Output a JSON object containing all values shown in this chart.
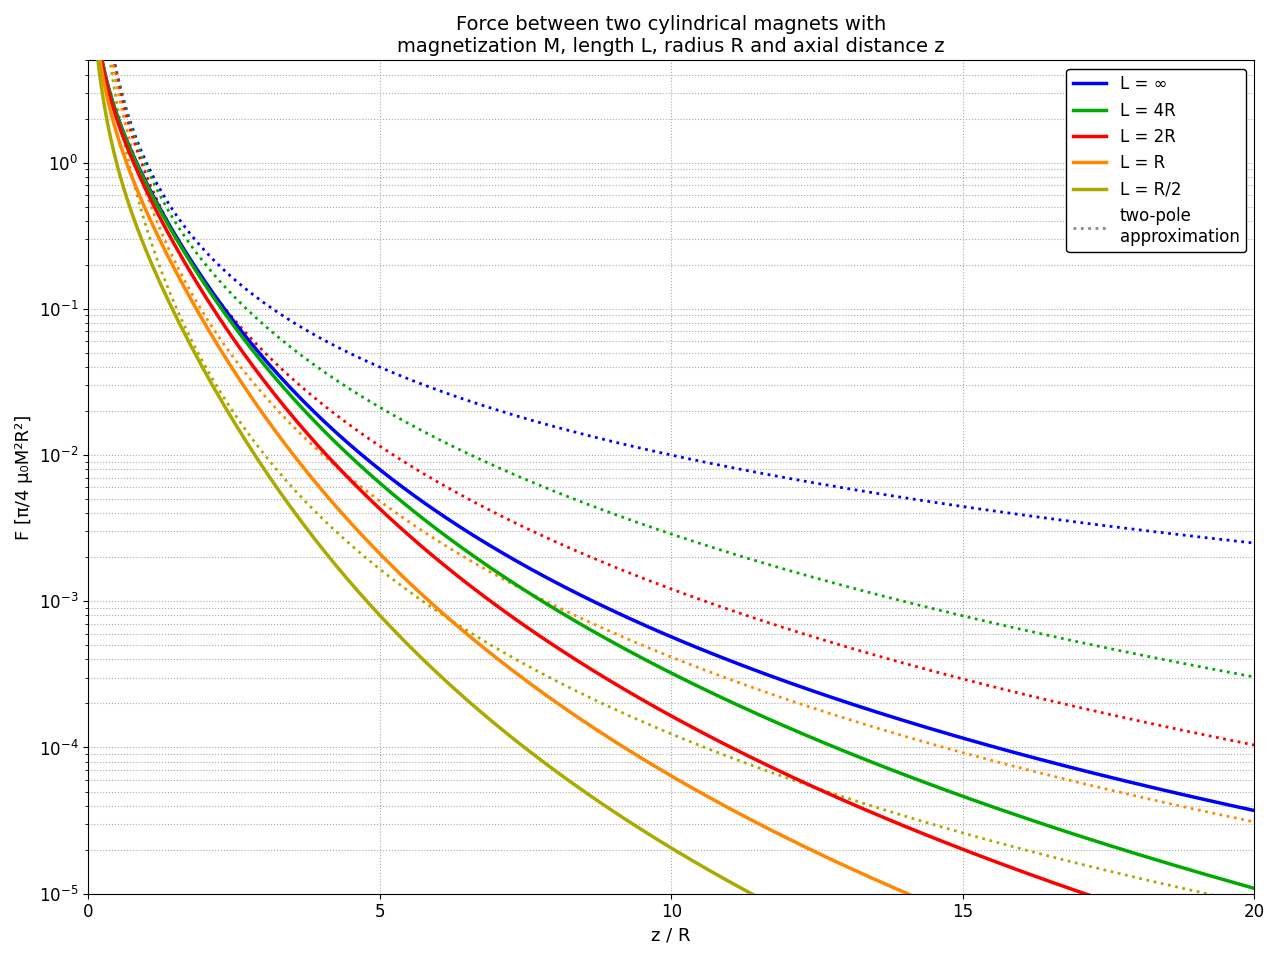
{
  "title": "Force between two cylindrical magnets with\nmagnetization M, length L, radius R and axial distance z",
  "xlabel": "z / R",
  "ylabel": "F [π/4 μ₀M²R²]",
  "xlim": [
    0,
    20
  ],
  "ylim": [
    1e-05,
    5.0
  ],
  "series": [
    {
      "label": "L = ∞",
      "color": "#0000ff",
      "L_over_R": 1000.0
    },
    {
      "label": "L = 4R",
      "color": "#00aa00",
      "L_over_R": 4.0
    },
    {
      "label": "L = 2R",
      "color": "#ff0000",
      "L_over_R": 2.0
    },
    {
      "label": "L = R",
      "color": "#ff8800",
      "L_over_R": 1.0
    },
    {
      "label": "L = R/2",
      "color": "#aaaa00",
      "L_over_R": 0.5
    }
  ],
  "approx_color": "#888888",
  "approx_label": "two-pole\napproximation",
  "marker_color": "black",
  "background_color": "#ffffff",
  "title_fontsize": 14,
  "label_fontsize": 13,
  "tick_fontsize": 12,
  "legend_fontsize": 12,
  "linewidth": 2.5,
  "dotted_linewidth": 2.0,
  "grid_color": "#aaaaaa",
  "grid_linestyle": ":"
}
